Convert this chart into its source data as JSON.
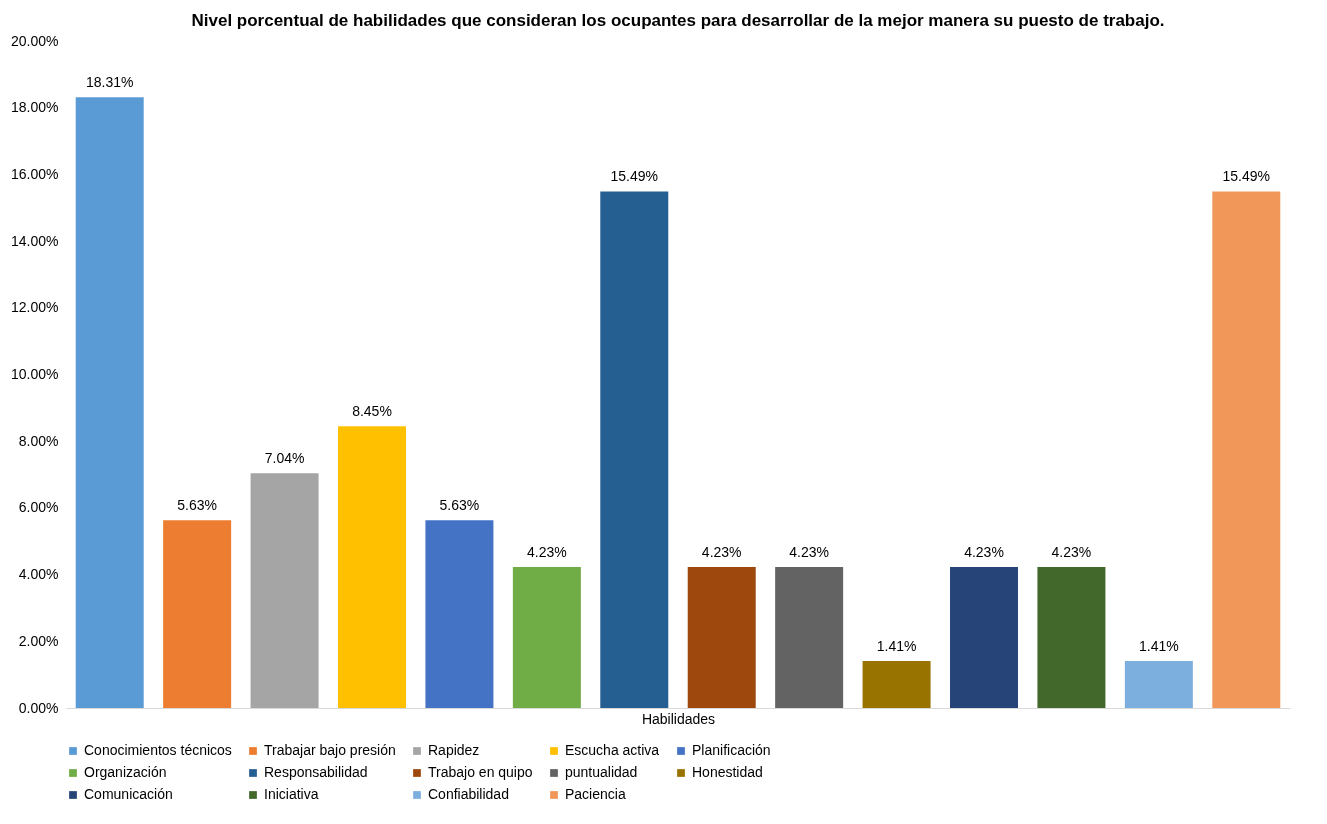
{
  "chart_data": {
    "type": "bar",
    "title": "Nivel porcentual de habilidades que consideran los ocupantes para desarrollar de la mejor manera su puesto de trabajo.",
    "xlabel": "Habilidades",
    "categories": [
      null,
      null,
      null,
      null,
      null,
      null,
      null,
      null,
      null,
      null,
      null,
      null,
      null,
      null
    ],
    "series": [
      {
        "name": "Conocimientos técnicos",
        "color": "#5b9bd5",
        "values": [
          18.31,
          null,
          null,
          null,
          null,
          null,
          null,
          null,
          null,
          null,
          null,
          null,
          null,
          null
        ],
        "value_labels": [
          "18.31%",
          null,
          null,
          null,
          null,
          null,
          null,
          null,
          null,
          null,
          null,
          null,
          null,
          null
        ]
      },
      {
        "name": "Trabajar bajo presión",
        "color": "#ed7d31",
        "values": [
          null,
          5.63,
          null,
          null,
          null,
          null,
          null,
          null,
          null,
          null,
          null,
          null,
          null,
          null
        ],
        "value_labels": [
          null,
          "5.63%",
          null,
          null,
          null,
          null,
          null,
          null,
          null,
          null,
          null,
          null,
          null,
          null
        ]
      },
      {
        "name": "Rapidez",
        "color": "#a5a5a5",
        "values": [
          null,
          null,
          7.04,
          null,
          null,
          null,
          null,
          null,
          null,
          null,
          null,
          null,
          null,
          null
        ],
        "value_labels": [
          null,
          null,
          "7.04%",
          null,
          null,
          null,
          null,
          null,
          null,
          null,
          null,
          null,
          null,
          null
        ]
      },
      {
        "name": "Escucha activa",
        "color": "#ffc000",
        "values": [
          null,
          null,
          null,
          8.45,
          null,
          null,
          null,
          null,
          null,
          null,
          null,
          null,
          null,
          null
        ],
        "value_labels": [
          null,
          null,
          null,
          "8.45%",
          null,
          null,
          null,
          null,
          null,
          null,
          null,
          null,
          null,
          null
        ]
      },
      {
        "name": "Planificación",
        "color": "#4472c4",
        "values": [
          null,
          null,
          null,
          null,
          5.63,
          null,
          null,
          null,
          null,
          null,
          null,
          null,
          null,
          null
        ],
        "value_labels": [
          null,
          null,
          null,
          null,
          "5.63%",
          null,
          null,
          null,
          null,
          null,
          null,
          null,
          null,
          null
        ]
      },
      {
        "name": "Organización",
        "color": "#70ad47",
        "values": [
          null,
          null,
          null,
          null,
          null,
          4.23,
          null,
          null,
          null,
          null,
          null,
          null,
          null,
          null
        ],
        "value_labels": [
          null,
          null,
          null,
          null,
          null,
          "4.23%",
          null,
          null,
          null,
          null,
          null,
          null,
          null,
          null
        ]
      },
      {
        "name": "Responsabilidad",
        "color": "#255e91",
        "values": [
          null,
          null,
          null,
          null,
          null,
          null,
          15.49,
          null,
          null,
          null,
          null,
          null,
          null,
          null
        ],
        "value_labels": [
          null,
          null,
          null,
          null,
          null,
          null,
          "15.49%",
          null,
          null,
          null,
          null,
          null,
          null,
          null
        ]
      },
      {
        "name": "Trabajo en quipo",
        "color": "#9e480e",
        "values": [
          null,
          null,
          null,
          null,
          null,
          null,
          null,
          4.23,
          null,
          null,
          null,
          null,
          null,
          null
        ],
        "value_labels": [
          null,
          null,
          null,
          null,
          null,
          null,
          null,
          "4.23%",
          null,
          null,
          null,
          null,
          null,
          null
        ]
      },
      {
        "name": "puntualidad",
        "color": "#636363",
        "values": [
          null,
          null,
          null,
          null,
          null,
          null,
          null,
          null,
          4.23,
          null,
          null,
          null,
          null,
          null
        ],
        "value_labels": [
          null,
          null,
          null,
          null,
          null,
          null,
          null,
          null,
          "4.23%",
          null,
          null,
          null,
          null,
          null
        ]
      },
      {
        "name": "Honestidad",
        "color": "#997300",
        "values": [
          null,
          null,
          null,
          null,
          null,
          null,
          null,
          null,
          null,
          1.41,
          null,
          null,
          null,
          null
        ],
        "value_labels": [
          null,
          null,
          null,
          null,
          null,
          null,
          null,
          null,
          null,
          "1.41%",
          null,
          null,
          null,
          null
        ]
      },
      {
        "name": "Comunicación",
        "color": "#264478",
        "values": [
          null,
          null,
          null,
          null,
          null,
          null,
          null,
          null,
          null,
          null,
          4.23,
          null,
          null,
          null
        ],
        "value_labels": [
          null,
          null,
          null,
          null,
          null,
          null,
          null,
          null,
          null,
          null,
          "4.23%",
          null,
          null,
          null
        ]
      },
      {
        "name": "Iniciativa",
        "color": "#43682b",
        "values": [
          null,
          null,
          null,
          null,
          null,
          null,
          null,
          null,
          null,
          null,
          null,
          4.23,
          null,
          null
        ],
        "value_labels": [
          null,
          null,
          null,
          null,
          null,
          null,
          null,
          null,
          null,
          null,
          null,
          "4.23%",
          null,
          null
        ]
      },
      {
        "name": "Confiabilidad",
        "color": "#7cafdd",
        "values": [
          null,
          null,
          null,
          null,
          null,
          null,
          null,
          null,
          null,
          null,
          null,
          null,
          1.41,
          null
        ],
        "value_labels": [
          null,
          null,
          null,
          null,
          null,
          null,
          null,
          null,
          null,
          null,
          null,
          null,
          "1.41%",
          null
        ]
      },
      {
        "name": "Paciencia",
        "color": "#f1975a",
        "values": [
          null,
          null,
          null,
          null,
          null,
          null,
          null,
          null,
          null,
          null,
          null,
          null,
          null,
          15.49
        ],
        "value_labels": [
          null,
          null,
          null,
          null,
          null,
          null,
          null,
          null,
          null,
          null,
          null,
          null,
          null,
          "15.49%"
        ]
      }
    ],
    "ylim": [
      0,
      20
    ],
    "yticks": [
      {
        "value": 0,
        "label": "0.00%"
      },
      {
        "value": 2,
        "label": "2.00%"
      },
      {
        "value": 4,
        "label": "4.00%"
      },
      {
        "value": 6,
        "label": "6.00%"
      },
      {
        "value": 8,
        "label": "8.00%"
      },
      {
        "value": 10,
        "label": "10.00%"
      },
      {
        "value": 12,
        "label": "12.00%"
      },
      {
        "value": 14,
        "label": "14.00%"
      },
      {
        "value": 16,
        "label": "16.00%"
      },
      {
        "value": 18,
        "label": "18.00%"
      },
      {
        "value": 20,
        "label": "20.00%"
      }
    ],
    "tick_labels": "y",
    "legend": "bottom",
    "grid": false
  }
}
